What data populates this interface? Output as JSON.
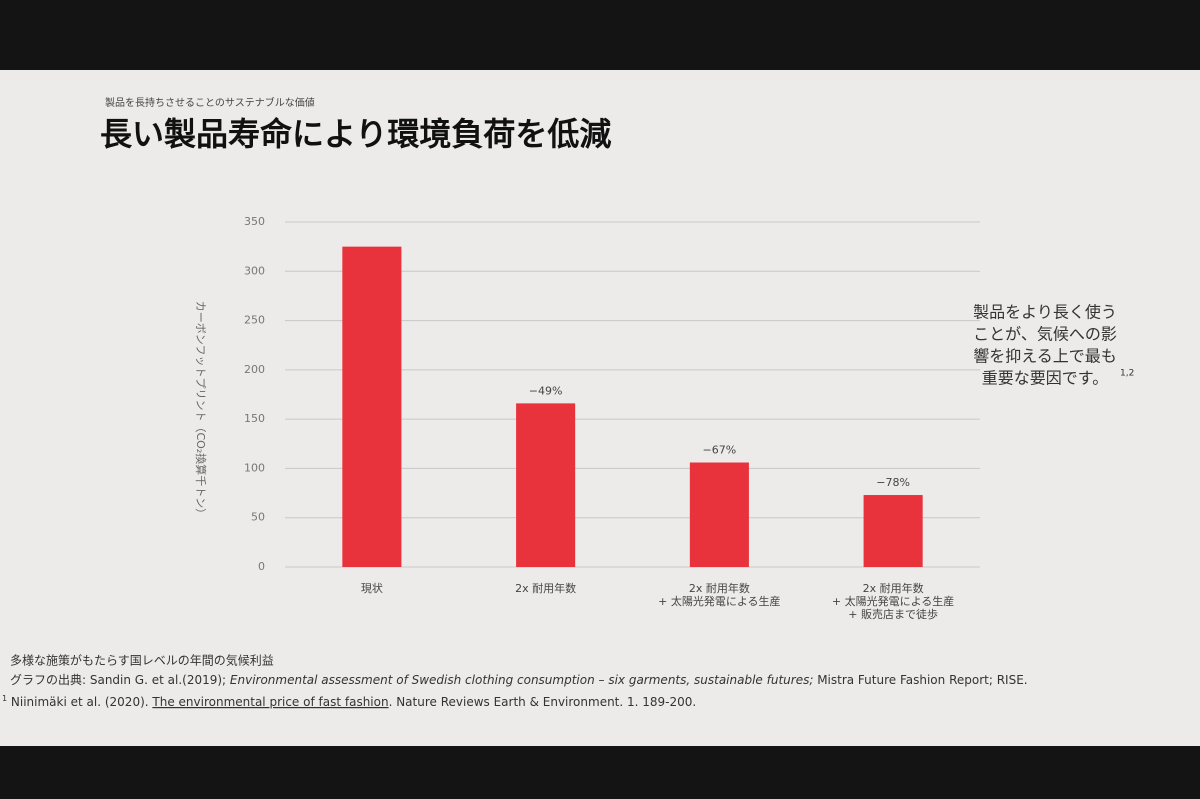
{
  "chart_data": {
    "type": "bar",
    "subtitle": "製品を長持ちさせることのサステナブルな価値",
    "title": "長い製品寿命により環境負荷を低減",
    "y_label": "カーボンフットプリント（CO₂換算千トン）",
    "categories": [
      [
        "現状"
      ],
      [
        "2x 耐用年数"
      ],
      [
        "2x 耐用年数",
        "+ 太陽光発電による生産"
      ],
      [
        "2x 耐用年数",
        "+ 太陽光発電による生産",
        "+ 販売店まで徒歩"
      ]
    ],
    "values": [
      325,
      166,
      106,
      73
    ],
    "annotations": [
      "−49%",
      "−67%",
      "−78%"
    ],
    "color": "#e8323c",
    "ylim": [
      0,
      350
    ],
    "yticks": [
      0,
      50,
      100,
      150,
      200,
      250,
      300,
      350
    ],
    "grid": true,
    "side_note": {
      "lines": [
        "製品をより長く使う",
        "ことが、気候への影",
        "響を抑える上で最も",
        "重要な要因です。"
      ],
      "ref": "1,2"
    },
    "footnotes": {
      "heading": "多様な施策がもたらす国レベルの年間の気候利益",
      "source_prefix": "グラフの出典: Sandin G. et al.(2019); ",
      "source_title": "Environmental assessment of Swedish clothing consumption – six garments, sustainable futures;",
      "source_suffix": " Mistra Future Fashion Report; RISE.",
      "ref_mark": "1",
      "ref_prefix": " Niinimäki et al. (2020). ",
      "ref_title": "The environmental price of fast fashion",
      "ref_suffix": ". Nature Reviews Earth & Environment. 1. 189-200."
    }
  }
}
